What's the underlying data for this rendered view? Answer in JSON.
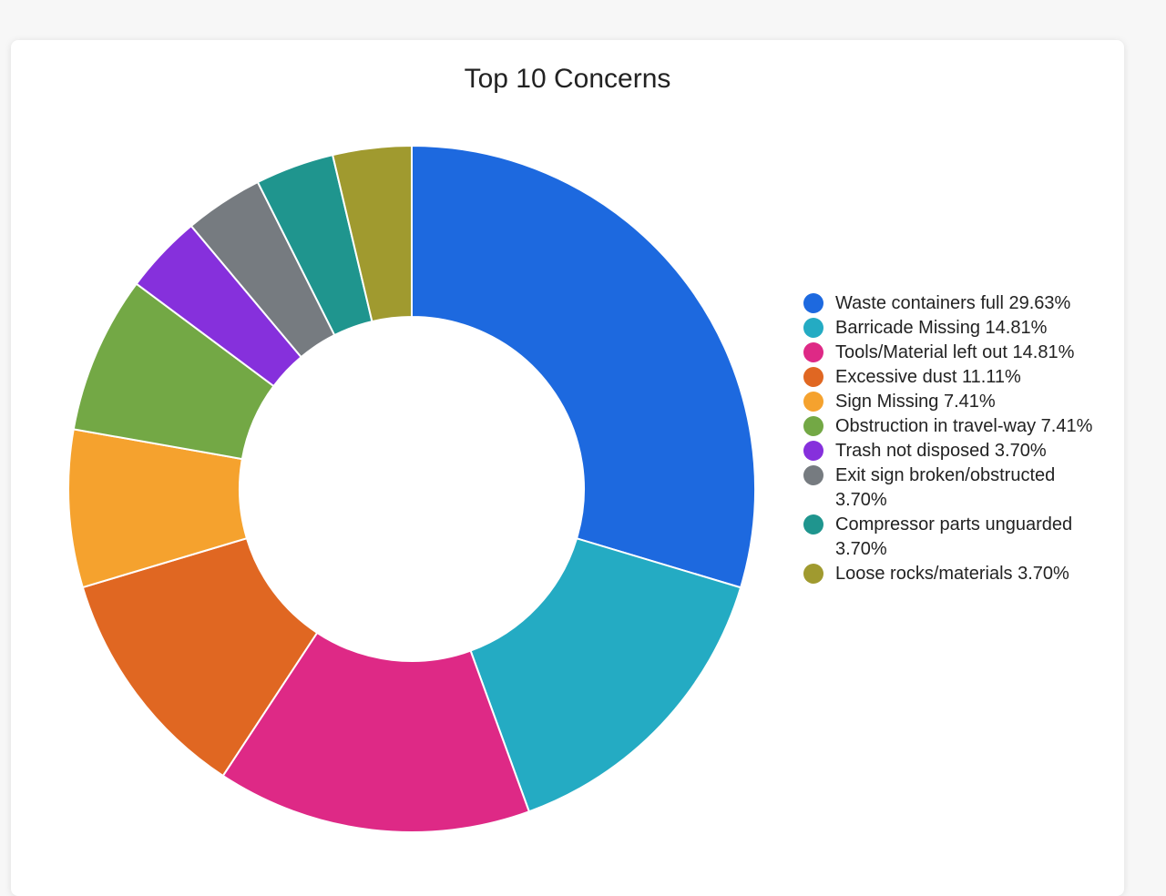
{
  "chart_data": {
    "type": "pie",
    "title": "Top 10 Concerns",
    "donut": true,
    "legend_position": "right",
    "slices": [
      {
        "label": "Waste containers full",
        "percent_label": "29.63%",
        "value": 29.63,
        "color": "#1d69df"
      },
      {
        "label": "Barricade Missing",
        "percent_label": "14.81%",
        "value": 14.81,
        "color": "#24abc3"
      },
      {
        "label": "Tools/Material left out",
        "percent_label": "14.81%",
        "value": 14.81,
        "color": "#de2986"
      },
      {
        "label": "Excessive dust",
        "percent_label": "11.11%",
        "value": 11.11,
        "color": "#e06722"
      },
      {
        "label": "Sign Missing",
        "percent_label": "7.41%",
        "value": 7.41,
        "color": "#f5a22e"
      },
      {
        "label": "Obstruction in travel-way",
        "percent_label": "7.41%",
        "value": 7.41,
        "color": "#73a845"
      },
      {
        "label": "Trash not disposed",
        "percent_label": "3.70%",
        "value": 3.7,
        "color": "#8630dc"
      },
      {
        "label": "Exit sign broken/obstructed",
        "percent_label": "3.70%",
        "value": 3.7,
        "color": "#767b80"
      },
      {
        "label": "Compressor parts unguarded",
        "percent_label": "3.70%",
        "value": 3.7,
        "color": "#1f958e"
      },
      {
        "label": "Loose rocks/materials",
        "percent_label": "3.70%",
        "value": 3.7,
        "color": "#a09a2f"
      }
    ]
  }
}
